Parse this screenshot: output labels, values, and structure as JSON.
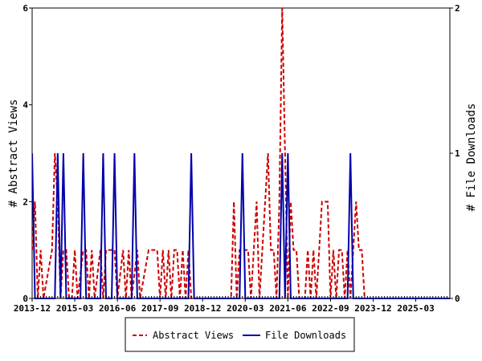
{
  "chart_data": {
    "type": "line",
    "y_left_label": "# Abstract Views",
    "y_right_label": "# File Downloads",
    "y_left_range": [
      0,
      6
    ],
    "y_right_range": [
      0,
      2
    ],
    "y_left_ticks": [
      "0",
      "2",
      "4",
      "6"
    ],
    "y_right_ticks": [
      "0",
      "1",
      "2"
    ],
    "x_range": [
      "2013-12",
      "2026-03"
    ],
    "x_tick_labels": [
      "2013-12",
      "2015-03",
      "2016-06",
      "2017-09",
      "2018-12",
      "2020-03",
      "2021-06",
      "2022-09",
      "2023-12",
      "2025-03"
    ],
    "legend_position": "bottom",
    "series": [
      {
        "name": "Abstract Views",
        "axis": "left",
        "color": "#cc0000",
        "style": "dashed",
        "points": [
          [
            "2013-12",
            1
          ],
          [
            "2014-01",
            2
          ],
          [
            "2014-02",
            0
          ],
          [
            "2014-03",
            1
          ],
          [
            "2014-04",
            0
          ],
          [
            "2014-07",
            1
          ],
          [
            "2014-08",
            3
          ],
          [
            "2014-09",
            2
          ],
          [
            "2014-10",
            0
          ],
          [
            "2014-11",
            1
          ],
          [
            "2014-12",
            1
          ],
          [
            "2015-01",
            0
          ],
          [
            "2015-02",
            0
          ],
          [
            "2015-03",
            1
          ],
          [
            "2015-04",
            0
          ],
          [
            "2015-06",
            1
          ],
          [
            "2015-07",
            1
          ],
          [
            "2015-08",
            0
          ],
          [
            "2015-09",
            1
          ],
          [
            "2015-10",
            0
          ],
          [
            "2015-12",
            1
          ],
          [
            "2016-01",
            0
          ],
          [
            "2016-02",
            1
          ],
          [
            "2016-03",
            1
          ],
          [
            "2016-04",
            1
          ],
          [
            "2016-05",
            1
          ],
          [
            "2016-06",
            0
          ],
          [
            "2016-08",
            1
          ],
          [
            "2016-09",
            0
          ],
          [
            "2016-10",
            1
          ],
          [
            "2016-11",
            0
          ],
          [
            "2017-01",
            1
          ],
          [
            "2017-02",
            0
          ],
          [
            "2017-05",
            1
          ],
          [
            "2017-06",
            1
          ],
          [
            "2017-07",
            1
          ],
          [
            "2017-08",
            1
          ],
          [
            "2017-09",
            0
          ],
          [
            "2017-10",
            1
          ],
          [
            "2017-11",
            0
          ],
          [
            "2017-12",
            1
          ],
          [
            "2018-01",
            0
          ],
          [
            "2018-02",
            1
          ],
          [
            "2018-03",
            1
          ],
          [
            "2018-04",
            0
          ],
          [
            "2018-05",
            1
          ],
          [
            "2018-06",
            0
          ],
          [
            "2018-07",
            1
          ],
          [
            "2018-08",
            0
          ],
          [
            "2018-11",
            0
          ],
          [
            "2019-10",
            0
          ],
          [
            "2019-11",
            2
          ],
          [
            "2019-12",
            0
          ],
          [
            "2020-01",
            1
          ],
          [
            "2020-02",
            1
          ],
          [
            "2020-03",
            1
          ],
          [
            "2020-04",
            1
          ],
          [
            "2020-05",
            0
          ],
          [
            "2020-06",
            1
          ],
          [
            "2020-07",
            2
          ],
          [
            "2020-08",
            0
          ],
          [
            "2020-09",
            1
          ],
          [
            "2020-10",
            2
          ],
          [
            "2020-11",
            3
          ],
          [
            "2020-12",
            1
          ],
          [
            "2021-01",
            1
          ],
          [
            "2021-02",
            0
          ],
          [
            "2021-03",
            2
          ],
          [
            "2021-04",
            6
          ],
          [
            "2021-05",
            3
          ],
          [
            "2021-06",
            0
          ],
          [
            "2021-07",
            2
          ],
          [
            "2021-08",
            1
          ],
          [
            "2021-09",
            1
          ],
          [
            "2021-10",
            0
          ],
          [
            "2021-12",
            0
          ],
          [
            "2022-01",
            1
          ],
          [
            "2022-02",
            0
          ],
          [
            "2022-03",
            1
          ],
          [
            "2022-04",
            0
          ],
          [
            "2022-05",
            1
          ],
          [
            "2022-06",
            2
          ],
          [
            "2022-07",
            2
          ],
          [
            "2022-08",
            2
          ],
          [
            "2022-09",
            0
          ],
          [
            "2022-10",
            1
          ],
          [
            "2022-11",
            0
          ],
          [
            "2022-12",
            1
          ],
          [
            "2023-01",
            1
          ],
          [
            "2023-02",
            0
          ],
          [
            "2023-03",
            1
          ],
          [
            "2023-04",
            0
          ],
          [
            "2023-05",
            1
          ],
          [
            "2023-06",
            2
          ],
          [
            "2023-07",
            1
          ],
          [
            "2023-08",
            1
          ],
          [
            "2023-09",
            0
          ],
          [
            "2026-03",
            0
          ]
        ]
      },
      {
        "name": "File Downloads",
        "axis": "right",
        "color": "#0000aa",
        "style": "solid",
        "points": [
          [
            "2013-12",
            1
          ],
          [
            "2014-01",
            0
          ],
          [
            "2014-02",
            0
          ],
          [
            "2014-08",
            0
          ],
          [
            "2014-09",
            1
          ],
          [
            "2014-10",
            0
          ],
          [
            "2014-11",
            1
          ],
          [
            "2014-12",
            0
          ],
          [
            "2015-05",
            0
          ],
          [
            "2015-06",
            1
          ],
          [
            "2015-07",
            0
          ],
          [
            "2015-12",
            0
          ],
          [
            "2016-01",
            1
          ],
          [
            "2016-02",
            0
          ],
          [
            "2016-04",
            0
          ],
          [
            "2016-05",
            1
          ],
          [
            "2016-06",
            0
          ],
          [
            "2016-11",
            0
          ],
          [
            "2016-12",
            1
          ],
          [
            "2017-01",
            0
          ],
          [
            "2018-07",
            0
          ],
          [
            "2018-08",
            1
          ],
          [
            "2018-09",
            0
          ],
          [
            "2020-01",
            0
          ],
          [
            "2020-02",
            1
          ],
          [
            "2020-03",
            0
          ],
          [
            "2021-03",
            0
          ],
          [
            "2021-04",
            1
          ],
          [
            "2021-05",
            0
          ],
          [
            "2021-06",
            1
          ],
          [
            "2021-07",
            0
          ],
          [
            "2023-03",
            0
          ],
          [
            "2023-04",
            1
          ],
          [
            "2023-05",
            0
          ],
          [
            "2026-03",
            0
          ]
        ]
      }
    ]
  }
}
